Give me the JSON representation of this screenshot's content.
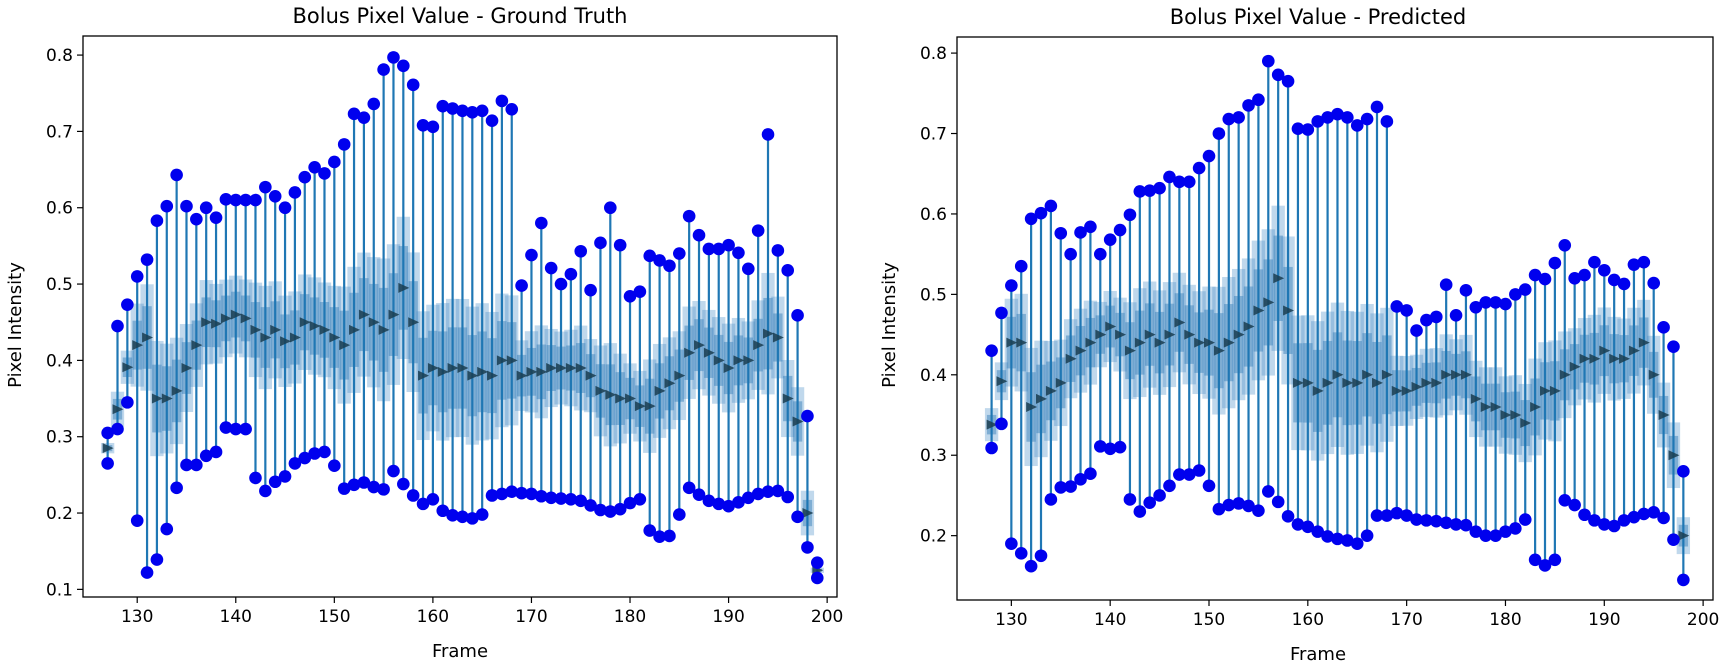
{
  "colors": {
    "stem": "#1f77b4",
    "band_outer": "#4a90c8",
    "band_inner": "#2f7bb5",
    "marker": "#0000ee",
    "median_marker": "#1a3d50"
  },
  "chart_data": [
    {
      "type": "range_errorbar",
      "title": "Bolus Pixel Value - Ground Truth",
      "xlabel": "Frame",
      "ylabel": "Pixel Intensity",
      "xlim": [
        124.5,
        201
      ],
      "ylim": [
        0.09,
        0.825
      ],
      "xticks": [
        130,
        140,
        150,
        160,
        170,
        180,
        190,
        200
      ],
      "yticks": [
        0.1,
        0.2,
        0.3,
        0.4,
        0.5,
        0.6,
        0.7,
        0.8
      ],
      "grid": false,
      "frames": [
        127,
        128,
        129,
        130,
        131,
        132,
        133,
        134,
        135,
        136,
        137,
        138,
        139,
        140,
        141,
        142,
        143,
        144,
        145,
        146,
        147,
        148,
        149,
        150,
        151,
        152,
        153,
        154,
        155,
        156,
        157,
        158,
        159,
        160,
        161,
        162,
        163,
        164,
        165,
        166,
        167,
        168,
        169,
        170,
        171,
        172,
        173,
        174,
        175,
        176,
        177,
        178,
        179,
        180,
        181,
        182,
        183,
        184,
        185,
        186,
        187,
        188,
        189,
        190,
        191,
        192,
        193,
        194,
        195,
        196,
        197,
        198,
        199
      ],
      "max": [
        0.305,
        0.445,
        0.473,
        0.51,
        0.532,
        0.583,
        0.602,
        0.643,
        0.602,
        0.585,
        0.6,
        0.587,
        0.611,
        0.61,
        0.61,
        0.61,
        0.627,
        0.615,
        0.6,
        0.62,
        0.64,
        0.653,
        0.645,
        0.66,
        0.683,
        0.723,
        0.718,
        0.736,
        0.781,
        0.797,
        0.786,
        0.761,
        0.708,
        0.706,
        0.733,
        0.73,
        0.727,
        0.725,
        0.727,
        0.714,
        0.74,
        0.729,
        0.498,
        0.538,
        0.58,
        0.521,
        0.5,
        0.513,
        0.543,
        0.492,
        0.554,
        0.6,
        0.551,
        0.484,
        0.49,
        0.537,
        0.531,
        0.524,
        0.54,
        0.589,
        0.564,
        0.546,
        0.546,
        0.551,
        0.541,
        0.52,
        0.57,
        0.696,
        0.544,
        0.518,
        0.459,
        0.327,
        0.135
      ],
      "min": [
        0.265,
        0.31,
        0.345,
        0.19,
        0.122,
        0.139,
        0.179,
        0.233,
        0.263,
        0.263,
        0.275,
        0.28,
        0.312,
        0.31,
        0.31,
        0.246,
        0.229,
        0.241,
        0.248,
        0.265,
        0.272,
        0.278,
        0.28,
        0.262,
        0.232,
        0.237,
        0.24,
        0.234,
        0.231,
        0.255,
        0.238,
        0.223,
        0.212,
        0.218,
        0.203,
        0.197,
        0.195,
        0.193,
        0.198,
        0.223,
        0.225,
        0.228,
        0.226,
        0.225,
        0.222,
        0.22,
        0.219,
        0.218,
        0.216,
        0.21,
        0.204,
        0.202,
        0.205,
        0.213,
        0.218,
        0.177,
        0.169,
        0.17,
        0.198,
        0.233,
        0.224,
        0.216,
        0.212,
        0.209,
        0.214,
        0.22,
        0.225,
        0.228,
        0.229,
        0.221,
        0.195,
        0.155,
        0.115
      ],
      "median": [
        0.285,
        0.336,
        0.391,
        0.42,
        0.43,
        0.35,
        0.35,
        0.36,
        0.39,
        0.42,
        0.45,
        0.448,
        0.455,
        0.46,
        0.455,
        0.44,
        0.43,
        0.44,
        0.425,
        0.43,
        0.45,
        0.445,
        0.44,
        0.43,
        0.42,
        0.44,
        0.46,
        0.45,
        0.44,
        0.46,
        0.495,
        0.45,
        0.38,
        0.39,
        0.385,
        0.39,
        0.39,
        0.38,
        0.385,
        0.38,
        0.4,
        0.4,
        0.38,
        0.385,
        0.385,
        0.39,
        0.39,
        0.39,
        0.39,
        0.38,
        0.36,
        0.355,
        0.35,
        0.35,
        0.34,
        0.34,
        0.36,
        0.37,
        0.38,
        0.41,
        0.42,
        0.41,
        0.4,
        0.39,
        0.4,
        0.4,
        0.42,
        0.435,
        0.43,
        0.35,
        0.32,
        0.2,
        0.125
      ]
    },
    {
      "type": "range_errorbar",
      "title": "Bolus Pixel Value - Predicted",
      "xlabel": "Frame",
      "ylabel": "Pixel Intensity",
      "xlim": [
        124.5,
        201
      ],
      "ylim": [
        0.12,
        0.82
      ],
      "xticks": [
        130,
        140,
        150,
        160,
        170,
        180,
        190,
        200
      ],
      "yticks": [
        0.2,
        0.3,
        0.4,
        0.5,
        0.6,
        0.7,
        0.8
      ],
      "grid": false,
      "frames": [
        128,
        129,
        130,
        131,
        132,
        133,
        134,
        135,
        136,
        137,
        138,
        139,
        140,
        141,
        142,
        143,
        144,
        145,
        146,
        147,
        148,
        149,
        150,
        151,
        152,
        153,
        154,
        155,
        156,
        157,
        158,
        159,
        160,
        161,
        162,
        163,
        164,
        165,
        166,
        167,
        168,
        169,
        170,
        171,
        172,
        173,
        174,
        175,
        176,
        177,
        178,
        179,
        180,
        181,
        182,
        183,
        184,
        185,
        186,
        187,
        188,
        189,
        190,
        191,
        192,
        193,
        194,
        195,
        196,
        197,
        198
      ],
      "max": [
        0.43,
        0.477,
        0.511,
        0.535,
        0.594,
        0.601,
        0.61,
        0.576,
        0.55,
        0.577,
        0.584,
        0.55,
        0.568,
        0.58,
        0.599,
        0.628,
        0.629,
        0.632,
        0.646,
        0.64,
        0.64,
        0.657,
        0.672,
        0.7,
        0.718,
        0.72,
        0.735,
        0.742,
        0.79,
        0.773,
        0.765,
        0.706,
        0.705,
        0.715,
        0.72,
        0.724,
        0.72,
        0.71,
        0.718,
        0.733,
        0.715,
        0.485,
        0.48,
        0.455,
        0.468,
        0.472,
        0.512,
        0.474,
        0.505,
        0.484,
        0.49,
        0.49,
        0.488,
        0.5,
        0.506,
        0.524,
        0.519,
        0.539,
        0.561,
        0.52,
        0.524,
        0.54,
        0.53,
        0.518,
        0.513,
        0.537,
        0.54,
        0.514,
        0.459,
        0.435,
        0.28
      ],
      "min": [
        0.309,
        0.339,
        0.19,
        0.178,
        0.162,
        0.175,
        0.245,
        0.26,
        0.261,
        0.27,
        0.277,
        0.311,
        0.308,
        0.31,
        0.245,
        0.23,
        0.241,
        0.25,
        0.262,
        0.276,
        0.276,
        0.281,
        0.262,
        0.233,
        0.238,
        0.24,
        0.237,
        0.231,
        0.255,
        0.242,
        0.224,
        0.214,
        0.211,
        0.205,
        0.199,
        0.196,
        0.194,
        0.19,
        0.2,
        0.225,
        0.225,
        0.228,
        0.225,
        0.22,
        0.219,
        0.218,
        0.216,
        0.214,
        0.213,
        0.205,
        0.2,
        0.2,
        0.205,
        0.209,
        0.22,
        0.17,
        0.163,
        0.17,
        0.244,
        0.238,
        0.226,
        0.219,
        0.214,
        0.212,
        0.219,
        0.223,
        0.227,
        0.229,
        0.222,
        0.195,
        0.145
      ],
      "median": [
        0.338,
        0.392,
        0.44,
        0.44,
        0.36,
        0.37,
        0.38,
        0.39,
        0.42,
        0.43,
        0.44,
        0.45,
        0.46,
        0.45,
        0.43,
        0.44,
        0.45,
        0.44,
        0.45,
        0.465,
        0.45,
        0.44,
        0.44,
        0.43,
        0.44,
        0.45,
        0.46,
        0.48,
        0.49,
        0.52,
        0.48,
        0.39,
        0.39,
        0.38,
        0.39,
        0.4,
        0.39,
        0.39,
        0.4,
        0.39,
        0.4,
        0.38,
        0.38,
        0.385,
        0.39,
        0.39,
        0.4,
        0.4,
        0.4,
        0.37,
        0.36,
        0.36,
        0.35,
        0.35,
        0.34,
        0.36,
        0.38,
        0.38,
        0.4,
        0.41,
        0.42,
        0.42,
        0.43,
        0.42,
        0.42,
        0.43,
        0.44,
        0.4,
        0.35,
        0.3,
        0.2
      ]
    }
  ]
}
